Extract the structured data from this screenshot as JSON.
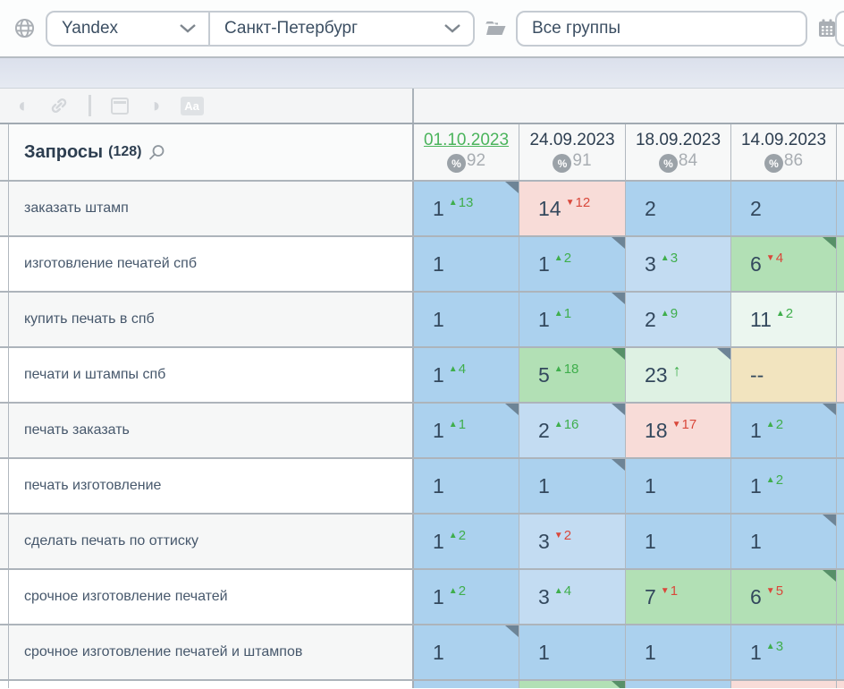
{
  "topbar": {
    "search_engine": {
      "label": "Yandex"
    },
    "region": {
      "label": "Санкт-Петербург"
    },
    "groups": {
      "label": "Все группы"
    }
  },
  "toolbar": {
    "text_case_label": "Aa"
  },
  "table": {
    "header": {
      "queries_label": "Запросы",
      "queries_count": "(128)",
      "pct_symbol": "%"
    },
    "columns": [
      {
        "date": "01.10.2023",
        "visibility": "92",
        "selected": true
      },
      {
        "date": "24.09.2023",
        "visibility": "91",
        "selected": false
      },
      {
        "date": "18.09.2023",
        "visibility": "84",
        "selected": false
      },
      {
        "date": "14.09.2023",
        "visibility": "86",
        "selected": false
      }
    ],
    "rows": [
      {
        "keyword": "заказать штамп",
        "sliver": "blue",
        "cells": [
          {
            "pos": "1",
            "delta": "13",
            "dir": "up",
            "bg": "blue",
            "corner": "slate"
          },
          {
            "pos": "14",
            "delta": "12",
            "dir": "down",
            "bg": "pink"
          },
          {
            "pos": "2",
            "bg": "blue"
          },
          {
            "pos": "2",
            "bg": "blue"
          }
        ]
      },
      {
        "keyword": "изготовление печатей спб",
        "sliver": "green",
        "cells": [
          {
            "pos": "1",
            "bg": "blue"
          },
          {
            "pos": "1",
            "delta": "2",
            "dir": "up",
            "bg": "blue",
            "corner": "slate"
          },
          {
            "pos": "3",
            "delta": "3",
            "dir": "up",
            "bg": "lightblue"
          },
          {
            "pos": "6",
            "delta": "4",
            "dir": "down",
            "bg": "green",
            "corner": "green"
          }
        ]
      },
      {
        "keyword": "купить печать в спб",
        "sliver": "palegreen",
        "cells": [
          {
            "pos": "1",
            "bg": "blue"
          },
          {
            "pos": "1",
            "delta": "1",
            "dir": "up",
            "bg": "blue",
            "corner": "slate"
          },
          {
            "pos": "2",
            "delta": "9",
            "dir": "up",
            "bg": "lightblue"
          },
          {
            "pos": "11",
            "delta": "2",
            "dir": "up",
            "bg": "palegreen"
          }
        ]
      },
      {
        "keyword": "печати и штампы спб",
        "sliver": "pink",
        "cells": [
          {
            "pos": "1",
            "delta": "4",
            "dir": "up",
            "bg": "blue"
          },
          {
            "pos": "5",
            "delta": "18",
            "dir": "up",
            "bg": "green",
            "corner": "green"
          },
          {
            "pos": "23",
            "arrow": "up",
            "bg": "lightgreen",
            "corner": "slate"
          },
          {
            "pos": "--",
            "bg": "tan"
          }
        ]
      },
      {
        "keyword": "печать заказать",
        "sliver": "blue",
        "cells": [
          {
            "pos": "1",
            "delta": "1",
            "dir": "up",
            "bg": "blue",
            "corner": "slate"
          },
          {
            "pos": "2",
            "delta": "16",
            "dir": "up",
            "bg": "lightblue",
            "corner": "slate"
          },
          {
            "pos": "18",
            "delta": "17",
            "dir": "down",
            "bg": "pink"
          },
          {
            "pos": "1",
            "delta": "2",
            "dir": "up",
            "bg": "blue",
            "corner": "slate"
          }
        ]
      },
      {
        "keyword": "печать изготовление",
        "sliver": "blue",
        "cells": [
          {
            "pos": "1",
            "bg": "blue"
          },
          {
            "pos": "1",
            "bg": "blue",
            "corner": "slate"
          },
          {
            "pos": "1",
            "bg": "blue"
          },
          {
            "pos": "1",
            "delta": "2",
            "dir": "up",
            "bg": "blue"
          }
        ]
      },
      {
        "keyword": "сделать печать по оттиску",
        "sliver": "blue",
        "cells": [
          {
            "pos": "1",
            "delta": "2",
            "dir": "up",
            "bg": "blue"
          },
          {
            "pos": "3",
            "delta": "2",
            "dir": "down",
            "bg": "lightblue"
          },
          {
            "pos": "1",
            "bg": "blue"
          },
          {
            "pos": "1",
            "bg": "blue",
            "corner": "slate"
          }
        ]
      },
      {
        "keyword": "срочное изготовление печатей",
        "sliver": "green",
        "cells": [
          {
            "pos": "1",
            "delta": "2",
            "dir": "up",
            "bg": "blue"
          },
          {
            "pos": "3",
            "delta": "4",
            "dir": "up",
            "bg": "lightblue"
          },
          {
            "pos": "7",
            "delta": "1",
            "dir": "down",
            "bg": "green"
          },
          {
            "pos": "6",
            "delta": "5",
            "dir": "down",
            "bg": "green",
            "corner": "green"
          }
        ]
      },
      {
        "keyword": "срочное изготовление печатей и штампов",
        "sliver": "blue",
        "cells": [
          {
            "pos": "1",
            "bg": "blue",
            "corner": "slate"
          },
          {
            "pos": "1",
            "bg": "blue"
          },
          {
            "pos": "1",
            "bg": "blue"
          },
          {
            "pos": "1",
            "delta": "3",
            "dir": "up",
            "bg": "blue"
          }
        ]
      },
      {
        "keyword": "",
        "partial": true,
        "sliver": "pink",
        "cells": [
          {
            "pos": "",
            "bg": "blue"
          },
          {
            "pos": "",
            "bg": "green",
            "corner": "green"
          },
          {
            "pos": "",
            "bg": "blue"
          },
          {
            "pos": "",
            "bg": "pink"
          }
        ]
      }
    ]
  },
  "colors": {
    "blue": "#abd1ee",
    "lightblue": "#c3dcf2",
    "green": "#b2e0b5",
    "lightgreen": "#def1e3",
    "palegreen": "#ebf6ef",
    "pink": "#f8dcd8",
    "tan": "#f2e4bf",
    "corner_slate": "#6d8496",
    "corner_green": "#579068",
    "up": "#3fae4c",
    "down": "#d9483b",
    "date_link": "#4bb45c"
  }
}
